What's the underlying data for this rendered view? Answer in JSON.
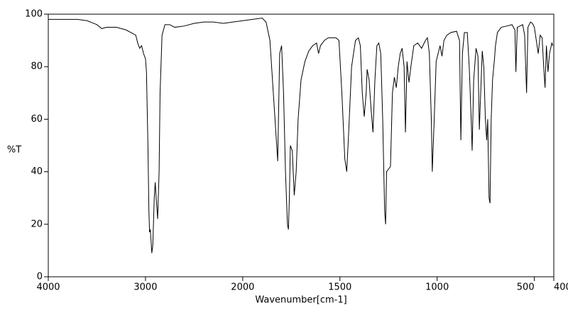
{
  "chart_data": {
    "type": "line",
    "y_label": "%T",
    "x_label": "Wavenumber[cm-1]",
    "xlim": [
      4000,
      400
    ],
    "ylim": [
      0,
      100
    ],
    "xticks": [
      4000,
      3000,
      2000,
      1500,
      1000,
      500,
      400
    ],
    "yticks": [
      0,
      20,
      40,
      60,
      80,
      100
    ],
    "x_expand_below": 2000,
    "color": "#000000",
    "x": [
      4000,
      3700,
      3600,
      3500,
      3450,
      3400,
      3300,
      3200,
      3100,
      3080,
      3060,
      3040,
      3020,
      3000,
      2990,
      2975,
      2965,
      2958,
      2950,
      2935,
      2925,
      2910,
      2900,
      2890,
      2875,
      2860,
      2850,
      2830,
      2800,
      2750,
      2700,
      2600,
      2500,
      2400,
      2300,
      2200,
      2100,
      2000,
      1950,
      1900,
      1880,
      1860,
      1820,
      1810,
      1800,
      1790,
      1780,
      1770,
      1765,
      1760,
      1755,
      1745,
      1735,
      1725,
      1715,
      1700,
      1680,
      1660,
      1640,
      1620,
      1610,
      1600,
      1580,
      1560,
      1540,
      1520,
      1505,
      1490,
      1475,
      1465,
      1455,
      1440,
      1420,
      1405,
      1395,
      1385,
      1375,
      1365,
      1360,
      1350,
      1340,
      1330,
      1320,
      1310,
      1300,
      1290,
      1280,
      1270,
      1265,
      1260,
      1250,
      1240,
      1230,
      1220,
      1210,
      1200,
      1190,
      1180,
      1170,
      1163,
      1155,
      1145,
      1135,
      1120,
      1100,
      1080,
      1060,
      1050,
      1040,
      1030,
      1025,
      1015,
      1005,
      995,
      985,
      975,
      965,
      950,
      930,
      900,
      885,
      878,
      870,
      860,
      845,
      835,
      825,
      820,
      812,
      800,
      790,
      783,
      776,
      768,
      760,
      752,
      745,
      740,
      733,
      728,
      722,
      715,
      705,
      700,
      690,
      670,
      640,
      615,
      600,
      595,
      588,
      560,
      550,
      540,
      533,
      520,
      510,
      500,
      490,
      480,
      470,
      460,
      452,
      445,
      438,
      430,
      422,
      410,
      405
    ],
    "values": [
      98,
      98,
      97.5,
      96,
      94.5,
      95,
      95,
      94,
      92,
      89,
      87,
      88,
      85,
      83,
      78,
      50,
      25,
      17,
      18,
      9,
      12,
      30,
      36,
      30,
      22,
      40,
      70,
      92,
      96,
      96,
      95,
      95.5,
      96.5,
      97,
      97,
      96.5,
      97,
      97.5,
      98,
      98.5,
      97,
      90,
      44,
      85,
      88,
      70,
      40,
      20,
      18,
      30,
      50,
      48,
      31,
      40,
      60,
      75,
      82,
      86,
      88,
      89,
      85,
      88,
      90,
      91,
      91,
      91,
      90,
      70,
      45,
      40,
      55,
      80,
      90,
      91,
      88,
      70,
      61,
      70,
      79,
      75,
      64,
      55,
      75,
      88,
      89,
      85,
      60,
      25,
      20,
      40,
      41,
      42,
      70,
      76,
      72,
      80,
      85,
      87,
      80,
      55,
      82,
      74,
      80,
      88,
      89,
      87,
      90,
      91,
      85,
      60,
      40,
      60,
      82,
      85,
      88,
      84,
      90,
      92,
      93,
      93.5,
      90,
      52,
      85,
      93,
      93,
      80,
      60,
      48,
      75,
      87,
      84,
      56,
      70,
      86,
      80,
      60,
      52,
      60,
      30,
      28,
      60,
      75,
      83,
      88,
      93,
      95,
      95.5,
      96,
      94,
      78,
      95,
      96,
      92,
      70,
      95,
      97,
      96.5,
      95,
      90,
      85,
      92,
      91,
      80,
      72,
      88,
      78,
      85,
      89,
      88
    ]
  }
}
